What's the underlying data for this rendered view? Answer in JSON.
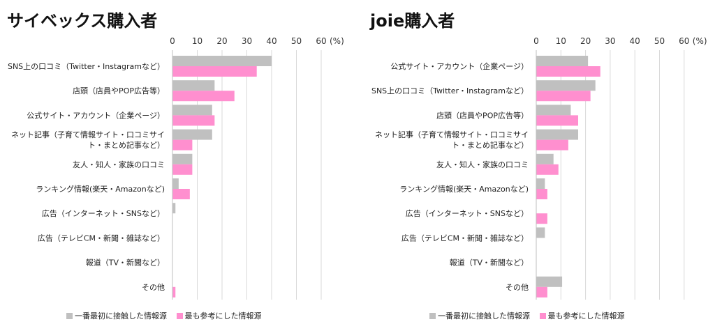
{
  "colors": {
    "first": "#c0c0c0",
    "most": "#ff8fcf",
    "grid": "#d9d9d9"
  },
  "legend": {
    "first": "一番最初に接触した情報源",
    "most": "最も参考にした情報源"
  },
  "chart_data": [
    {
      "type": "bar",
      "orientation": "horizontal",
      "title": "サイベックス購入者",
      "unit": "(%)",
      "xlim": [
        0,
        60
      ],
      "ticks": [
        0,
        10,
        20,
        30,
        40,
        50,
        60
      ],
      "categories": [
        [
          "SNS上の口コミ（Twitter・Instagramなど）"
        ],
        [
          "店頭（店員やPOP広告等）"
        ],
        [
          "公式サイト・アカウント（企業ページ）"
        ],
        [
          "ネット記事（子育て情報サイト・口コミサイ",
          "ト・まとめ記事など）"
        ],
        [
          "友人・知人・家族の口コミ"
        ],
        [
          "ランキング情報(楽天・Amazonなど)"
        ],
        [
          "広告（インターネット・SNSなど）"
        ],
        [
          "広告（テレビCM・新聞・雑誌など）"
        ],
        [
          "報道（TV・新聞など）"
        ],
        [
          "その他"
        ]
      ],
      "series": [
        {
          "name": "一番最初に接触した情報源",
          "key": "first",
          "values": [
            40,
            17,
            16,
            16,
            8,
            2.5,
            1.2,
            0,
            0,
            0
          ]
        },
        {
          "name": "最も参考にした情報源",
          "key": "most",
          "values": [
            34,
            25,
            17,
            8,
            8,
            7,
            0,
            0,
            0,
            1.2
          ]
        }
      ]
    },
    {
      "type": "bar",
      "orientation": "horizontal",
      "title": "joie購入者",
      "unit": "(%)",
      "xlim": [
        0,
        60
      ],
      "ticks": [
        0,
        10,
        20,
        30,
        40,
        50,
        60
      ],
      "categories": [
        [
          "公式サイト・アカウント（企業ページ）"
        ],
        [
          "SNS上の口コミ（Twitter・Instagramなど）"
        ],
        [
          "店頭（店員やPOP広告等）"
        ],
        [
          "ネット記事（子育て情報サイト・口コミサイ",
          "ト・まとめ記事など）"
        ],
        [
          "友人・知人・家族の口コミ"
        ],
        [
          "ランキング情報(楽天・Amazonなど)"
        ],
        [
          "広告（インターネット・SNSなど）"
        ],
        [
          "広告（テレビCM・新聞・雑誌など）"
        ],
        [
          "報道（TV・新聞など）"
        ],
        [
          "その他"
        ]
      ],
      "series": [
        {
          "name": "一番最初に接触した情報源",
          "key": "first",
          "values": [
            21,
            24,
            14,
            17,
            7,
            3.5,
            0,
            3.5,
            0,
            10.5
          ]
        },
        {
          "name": "最も参考にした情報源",
          "key": "most",
          "values": [
            26,
            22,
            17,
            13,
            9,
            4.5,
            4.5,
            0,
            0,
            4.5
          ]
        }
      ]
    }
  ]
}
